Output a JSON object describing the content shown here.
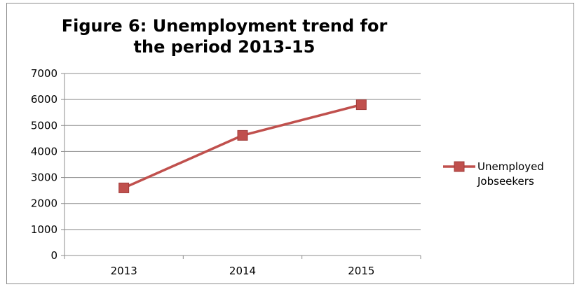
{
  "chart_data": {
    "type": "line",
    "title": "Figure 6: Unemployment trend for the period 2013-15",
    "xlabel": "",
    "ylabel": "",
    "categories": [
      "2013",
      "2014",
      "2015"
    ],
    "series": [
      {
        "name": "Unemployed Jobseekers",
        "values": [
          2600,
          4620,
          5800
        ],
        "color": "#c0504d"
      }
    ],
    "ylim": [
      0,
      7000
    ],
    "yticks": [
      "0",
      "1000",
      "2000",
      "3000",
      "4000",
      "5000",
      "6000",
      "7000"
    ],
    "grid": true,
    "legend": "right",
    "legend_lines": [
      "Unemployed",
      "Jobseekers"
    ]
  }
}
